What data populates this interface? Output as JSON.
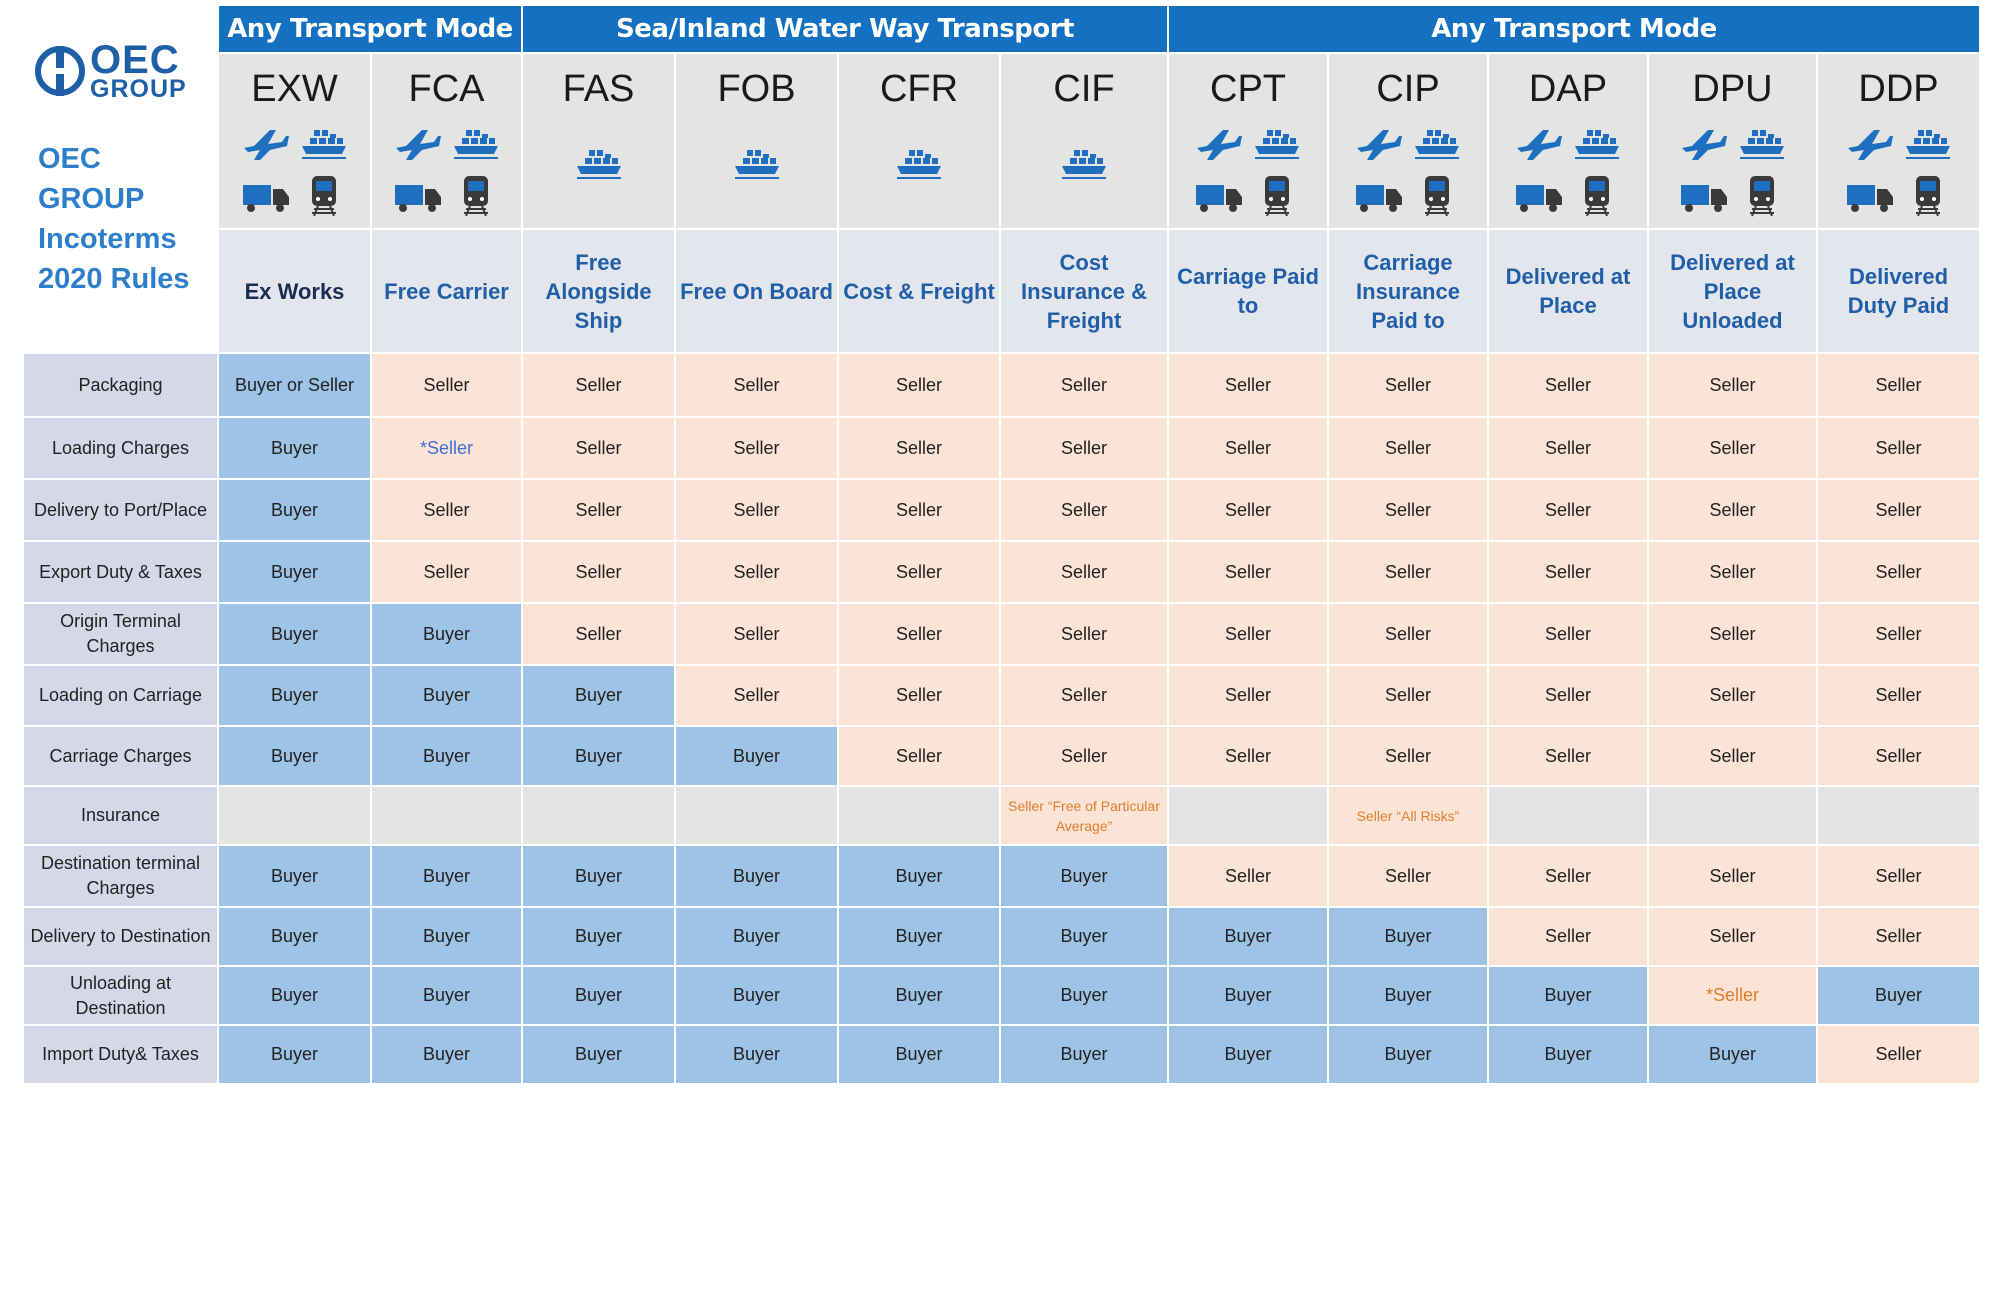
{
  "logo": {
    "line1": "OEC",
    "line2": "GROUP"
  },
  "title": {
    "line1": "OEC",
    "line2": "GROUP",
    "line3": "Incoterms",
    "line4": "2020 Rules"
  },
  "groups": [
    {
      "label": "Any Transport Mode"
    },
    {
      "label": "Sea/Inland Water Way Transport"
    },
    {
      "label": "Any Transport Mode"
    }
  ],
  "terms": [
    {
      "code": "EXW",
      "name": "Ex Works",
      "icons": [
        "airplane-icon",
        "ship-icon",
        "truck-icon",
        "train-icon"
      ]
    },
    {
      "code": "FCA",
      "name": "Free Carrier",
      "icons": [
        "airplane-icon",
        "ship-icon",
        "truck-icon",
        "train-icon"
      ]
    },
    {
      "code": "FAS",
      "name": "Free Alongside Ship",
      "icons": [
        "ship-icon"
      ]
    },
    {
      "code": "FOB",
      "name": "Free On Board",
      "icons": [
        "ship-icon"
      ]
    },
    {
      "code": "CFR",
      "name": "Cost & Freight",
      "icons": [
        "ship-icon"
      ]
    },
    {
      "code": "CIF",
      "name": "Cost Insurance & Freight",
      "icons": [
        "ship-icon"
      ]
    },
    {
      "code": "CPT",
      "name": "Carriage Paid to",
      "icons": [
        "airplane-icon",
        "ship-icon",
        "truck-icon",
        "train-icon"
      ]
    },
    {
      "code": "CIP",
      "name": "Carriage Insurance Paid to",
      "icons": [
        "airplane-icon",
        "ship-icon",
        "truck-icon",
        "train-icon"
      ]
    },
    {
      "code": "DAP",
      "name": "Delivered at Place",
      "icons": [
        "airplane-icon",
        "ship-icon",
        "truck-icon",
        "train-icon"
      ]
    },
    {
      "code": "DPU",
      "name": "Delivered at Place Unloaded",
      "icons": [
        "airplane-icon",
        "ship-icon",
        "truck-icon",
        "train-icon"
      ]
    },
    {
      "code": "DDP",
      "name": "Delivered Duty Paid",
      "icons": [
        "airplane-icon",
        "ship-icon",
        "truck-icon",
        "train-icon"
      ]
    }
  ],
  "rows": [
    {
      "label": "Packaging",
      "cells": [
        [
          "Buyer or Seller",
          "buyer"
        ],
        [
          "Seller",
          "seller"
        ],
        [
          "Seller",
          "seller"
        ],
        [
          "Seller",
          "seller"
        ],
        [
          "Seller",
          "seller"
        ],
        [
          "Seller",
          "seller"
        ],
        [
          "Seller",
          "seller"
        ],
        [
          "Seller",
          "seller"
        ],
        [
          "Seller",
          "seller"
        ],
        [
          "Seller",
          "seller"
        ],
        [
          "Seller",
          "seller"
        ]
      ]
    },
    {
      "label": "Loading Charges",
      "cells": [
        [
          "Buyer",
          "buyer"
        ],
        [
          "*Seller",
          "seller-note"
        ],
        [
          "Seller",
          "seller"
        ],
        [
          "Seller",
          "seller"
        ],
        [
          "Seller",
          "seller"
        ],
        [
          "Seller",
          "seller"
        ],
        [
          "Seller",
          "seller"
        ],
        [
          "Seller",
          "seller"
        ],
        [
          "Seller",
          "seller"
        ],
        [
          "Seller",
          "seller"
        ],
        [
          "Seller",
          "seller"
        ]
      ]
    },
    {
      "label": "Delivery to Port/Place",
      "cells": [
        [
          "Buyer",
          "buyer"
        ],
        [
          "Seller",
          "seller"
        ],
        [
          "Seller",
          "seller"
        ],
        [
          "Seller",
          "seller"
        ],
        [
          "Seller",
          "seller"
        ],
        [
          "Seller",
          "seller"
        ],
        [
          "Seller",
          "seller"
        ],
        [
          "Seller",
          "seller"
        ],
        [
          "Seller",
          "seller"
        ],
        [
          "Seller",
          "seller"
        ],
        [
          "Seller",
          "seller"
        ]
      ]
    },
    {
      "label": "Export Duty & Taxes",
      "cells": [
        [
          "Buyer",
          "buyer"
        ],
        [
          "Seller",
          "seller"
        ],
        [
          "Seller",
          "seller"
        ],
        [
          "Seller",
          "seller"
        ],
        [
          "Seller",
          "seller"
        ],
        [
          "Seller",
          "seller"
        ],
        [
          "Seller",
          "seller"
        ],
        [
          "Seller",
          "seller"
        ],
        [
          "Seller",
          "seller"
        ],
        [
          "Seller",
          "seller"
        ],
        [
          "Seller",
          "seller"
        ]
      ]
    },
    {
      "label": "Origin Terminal Charges",
      "cells": [
        [
          "Buyer",
          "buyer"
        ],
        [
          "Buyer",
          "buyer"
        ],
        [
          "Seller",
          "seller"
        ],
        [
          "Seller",
          "seller"
        ],
        [
          "Seller",
          "seller"
        ],
        [
          "Seller",
          "seller"
        ],
        [
          "Seller",
          "seller"
        ],
        [
          "Seller",
          "seller"
        ],
        [
          "Seller",
          "seller"
        ],
        [
          "Seller",
          "seller"
        ],
        [
          "Seller",
          "seller"
        ]
      ]
    },
    {
      "label": "Loading on Carriage",
      "cells": [
        [
          "Buyer",
          "buyer"
        ],
        [
          "Buyer",
          "buyer"
        ],
        [
          "Buyer",
          "buyer"
        ],
        [
          "Seller",
          "seller"
        ],
        [
          "Seller",
          "seller"
        ],
        [
          "Seller",
          "seller"
        ],
        [
          "Seller",
          "seller"
        ],
        [
          "Seller",
          "seller"
        ],
        [
          "Seller",
          "seller"
        ],
        [
          "Seller",
          "seller"
        ],
        [
          "Seller",
          "seller"
        ]
      ]
    },
    {
      "label": "Carriage Charges",
      "cells": [
        [
          "Buyer",
          "buyer"
        ],
        [
          "Buyer",
          "buyer"
        ],
        [
          "Buyer",
          "buyer"
        ],
        [
          "Buyer",
          "buyer"
        ],
        [
          "Seller",
          "seller"
        ],
        [
          "Seller",
          "seller"
        ],
        [
          "Seller",
          "seller"
        ],
        [
          "Seller",
          "seller"
        ],
        [
          "Seller",
          "seller"
        ],
        [
          "Seller",
          "seller"
        ],
        [
          "Seller",
          "seller"
        ]
      ]
    },
    {
      "label": "Insurance",
      "cells": [
        [
          "",
          "none"
        ],
        [
          "",
          "none"
        ],
        [
          "",
          "none"
        ],
        [
          "",
          "none"
        ],
        [
          "",
          "none"
        ],
        [
          "Seller “Free of Particular Average”",
          "insurance"
        ],
        [
          "",
          "none"
        ],
        [
          "Seller “All Risks”",
          "insurance"
        ],
        [
          "",
          "none"
        ],
        [
          "",
          "none"
        ],
        [
          "",
          "none"
        ]
      ]
    },
    {
      "label": "Destination terminal Charges",
      "cells": [
        [
          "Buyer",
          "buyer"
        ],
        [
          "Buyer",
          "buyer"
        ],
        [
          "Buyer",
          "buyer"
        ],
        [
          "Buyer",
          "buyer"
        ],
        [
          "Buyer",
          "buyer"
        ],
        [
          "Buyer",
          "buyer"
        ],
        [
          "Seller",
          "seller"
        ],
        [
          "Seller",
          "seller"
        ],
        [
          "Seller",
          "seller"
        ],
        [
          "Seller",
          "seller"
        ],
        [
          "Seller",
          "seller"
        ]
      ]
    },
    {
      "label": "Delivery to Destination",
      "cells": [
        [
          "Buyer",
          "buyer"
        ],
        [
          "Buyer",
          "buyer"
        ],
        [
          "Buyer",
          "buyer"
        ],
        [
          "Buyer",
          "buyer"
        ],
        [
          "Buyer",
          "buyer"
        ],
        [
          "Buyer",
          "buyer"
        ],
        [
          "Buyer",
          "buyer"
        ],
        [
          "Buyer",
          "buyer"
        ],
        [
          "Seller",
          "seller"
        ],
        [
          "Seller",
          "seller"
        ],
        [
          "Seller",
          "seller"
        ]
      ]
    },
    {
      "label": "Unloading at Destination",
      "cells": [
        [
          "Buyer",
          "buyer"
        ],
        [
          "Buyer",
          "buyer"
        ],
        [
          "Buyer",
          "buyer"
        ],
        [
          "Buyer",
          "buyer"
        ],
        [
          "Buyer",
          "buyer"
        ],
        [
          "Buyer",
          "buyer"
        ],
        [
          "Buyer",
          "buyer"
        ],
        [
          "Buyer",
          "buyer"
        ],
        [
          "Buyer",
          "buyer"
        ],
        [
          "*Seller",
          "seller-note-orange"
        ],
        [
          "Buyer",
          "buyer"
        ]
      ]
    },
    {
      "label": "Import Duty& Taxes",
      "cells": [
        [
          "Buyer",
          "buyer"
        ],
        [
          "Buyer",
          "buyer"
        ],
        [
          "Buyer",
          "buyer"
        ],
        [
          "Buyer",
          "buyer"
        ],
        [
          "Buyer",
          "buyer"
        ],
        [
          "Buyer",
          "buyer"
        ],
        [
          "Buyer",
          "buyer"
        ],
        [
          "Buyer",
          "buyer"
        ],
        [
          "Buyer",
          "buyer"
        ],
        [
          "Buyer",
          "buyer"
        ],
        [
          "Seller",
          "seller"
        ]
      ]
    }
  ],
  "colors": {
    "header_blue": "#1470c0",
    "buyer": "#9dc3e6",
    "seller": "#fbe3d6",
    "empty": "#e4e4e4",
    "label": "#d4d8e9",
    "accent_orange": "#e07e2a"
  }
}
